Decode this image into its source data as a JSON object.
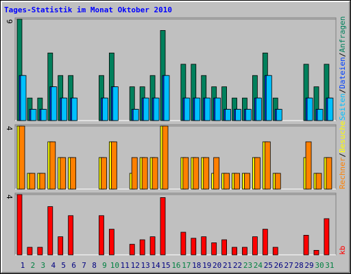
{
  "title": "Tages-Statistik im Monat Oktober 2010",
  "legend_separator": "/",
  "chart_data": [
    {
      "type": "bar",
      "ylim": [
        0,
        9
      ],
      "yticks": [
        9
      ],
      "series": [
        {
          "name": "Anfragen",
          "color": "#00805c",
          "values": [
            9,
            2,
            2,
            6,
            4,
            4,
            0,
            0,
            4,
            6,
            0,
            3,
            3,
            4,
            8,
            0,
            5,
            5,
            4,
            3,
            3,
            2,
            2,
            4,
            6,
            2,
            0,
            0,
            5,
            3,
            5
          ]
        },
        {
          "name": "Dateien",
          "color": "#0040ff",
          "values": [
            4,
            1,
            1,
            3,
            2,
            2,
            0,
            0,
            2,
            3,
            0,
            1,
            2,
            2,
            4,
            0,
            2,
            2,
            2,
            2,
            1,
            1,
            1,
            2,
            4,
            1,
            0,
            0,
            2,
            1,
            2
          ]
        },
        {
          "name": "Seiten",
          "color": "#00c0ff",
          "values": [
            4,
            1,
            1,
            3,
            2,
            2,
            0,
            0,
            2,
            3,
            0,
            1,
            2,
            2,
            4,
            0,
            2,
            2,
            2,
            2,
            1,
            1,
            1,
            2,
            4,
            1,
            0,
            0,
            2,
            1,
            2
          ]
        }
      ]
    },
    {
      "type": "bar",
      "ylim": [
        0,
        4
      ],
      "yticks": [
        4
      ],
      "series": [
        {
          "name": "Besuche",
          "color": "#ffff00",
          "values": [
            4,
            1,
            1,
            3,
            2,
            2,
            0,
            0,
            2,
            3,
            0,
            1,
            2,
            2,
            4,
            0,
            2,
            2,
            2,
            1,
            1,
            1,
            1,
            2,
            3,
            1,
            0,
            0,
            2,
            1,
            2
          ]
        },
        {
          "name": "Rechner",
          "color": "#ff8000",
          "values": [
            4,
            1,
            1,
            3,
            2,
            2,
            0,
            0,
            2,
            3,
            0,
            2,
            2,
            2,
            4,
            0,
            2,
            2,
            2,
            2,
            1,
            1,
            1,
            2,
            3,
            1,
            0,
            0,
            3,
            1,
            2
          ]
        }
      ]
    },
    {
      "type": "bar",
      "ylim": [
        0,
        4
      ],
      "yticks": [
        4
      ],
      "categories": [
        "1",
        "2",
        "3",
        "4",
        "5",
        "6",
        "7",
        "8",
        "9",
        "10",
        "11",
        "12",
        "13",
        "14",
        "15",
        "16",
        "17",
        "18",
        "19",
        "20",
        "21",
        "22",
        "23",
        "24",
        "25",
        "26",
        "27",
        "28",
        "29",
        "30",
        "31"
      ],
      "category_colors": [
        "#000080",
        "#008040",
        "#008040",
        "#000080",
        "#000080",
        "#000080",
        "#000080",
        "#000080",
        "#008040",
        "#008040",
        "#000080",
        "#000080",
        "#000080",
        "#000080",
        "#000080",
        "#008040",
        "#008040",
        "#000080",
        "#000080",
        "#000080",
        "#000080",
        "#000080",
        "#008040",
        "#008040",
        "#000080",
        "#000080",
        "#000080",
        "#000080",
        "#000080",
        "#008040",
        "#008040"
      ],
      "series": [
        {
          "name": "kb",
          "color": "#ff0000",
          "values": [
            4,
            0.5,
            0.5,
            3.2,
            1.2,
            2.6,
            0,
            0,
            2.6,
            1.7,
            0,
            0.7,
            1,
            1.2,
            3.8,
            0,
            1.5,
            1.1,
            1.2,
            0.8,
            1,
            0.5,
            0.5,
            1.2,
            1.7,
            0.5,
            0,
            0,
            1.3,
            0.3,
            2.4
          ]
        }
      ]
    }
  ]
}
